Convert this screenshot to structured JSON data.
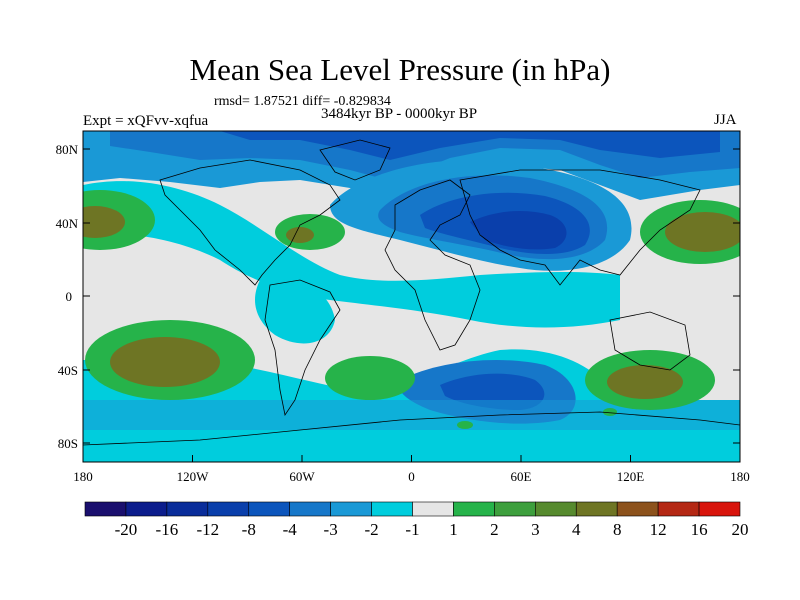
{
  "header": {
    "title": "Mean Sea Level Pressure (in hPa)",
    "stats": "rmsd= 1.87521 diff= -0.829834",
    "period": "3484kyr BP - 0000kyr BP",
    "experiment": "Expt = xQFvv-xqfua",
    "season": "JJA"
  },
  "axes": {
    "lat_labels": [
      "80N",
      "40N",
      "0",
      "40S",
      "80S"
    ],
    "lon_labels": [
      "180",
      "120W",
      "60W",
      "0",
      "60E",
      "120E",
      "180"
    ]
  },
  "colorbar": {
    "labels": [
      "-20",
      "-16",
      "-12",
      "-8",
      "-4",
      "-3",
      "-2",
      "-1",
      "1",
      "2",
      "3",
      "4",
      "8",
      "12",
      "16",
      "20"
    ],
    "colors": [
      "#1a0f6e",
      "#0c1d8c",
      "#0a2d9a",
      "#0a3fab",
      "#0c55bc",
      "#1677c9",
      "#1a99d6",
      "#00cddd",
      "#e6e6e6",
      "#26b34a",
      "#3d9f3d",
      "#568a2e",
      "#6e7524",
      "#8c521c",
      "#b42814",
      "#d8140c"
    ]
  },
  "colors": {
    "land": "#e6e6e6",
    "coast": "#000000"
  }
}
